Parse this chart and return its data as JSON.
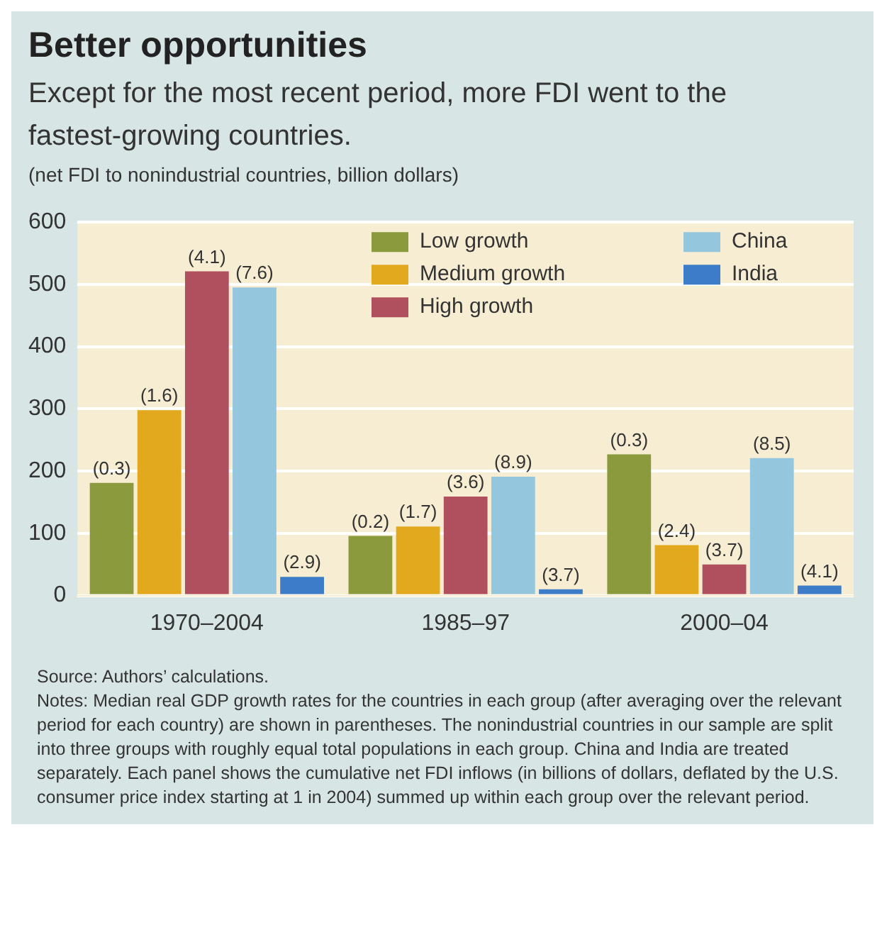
{
  "chart_data": {
    "type": "bar",
    "title": "Better opportunities",
    "subtitle": "Except for the most recent period, more FDI went to the fastest-growing countries.",
    "ylabel": "(net FDI to nonindustrial countries, billion dollars)",
    "categories": [
      "1970–2004",
      "1985–97",
      "2000–04"
    ],
    "series": [
      {
        "name": "Low growth",
        "color": "#8a9a3c",
        "values": [
          181,
          96,
          227
        ]
      },
      {
        "name": "Medium growth",
        "color": "#e2a81e",
        "values": [
          298,
          111,
          81
        ]
      },
      {
        "name": "High growth",
        "color": "#b0505e",
        "values": [
          521,
          159,
          50
        ]
      },
      {
        "name": "China",
        "color": "#94c6de",
        "values": [
          495,
          191,
          221
        ]
      },
      {
        "name": "India",
        "color": "#3d7cc9",
        "values": [
          30,
          10,
          16
        ]
      }
    ],
    "ylim": [
      0,
      600
    ],
    "yticks": [
      0,
      100,
      200,
      300,
      400,
      500,
      600
    ],
    "grid": "y",
    "legend": "top right",
    "annotations": [
      "(0.3)",
      "(1.6)",
      "(4.1)",
      "(7.6)",
      "(2.9)",
      "(0.2)",
      "(1.7)",
      "(3.6)",
      "(8.9)",
      "(3.7)",
      "(0.3)",
      "(2.4)",
      "(3.7)",
      "(8.5)",
      "(4.1)",
      "Source: Authors’ calculations.",
      "Notes: Median real GDP growth rates for the countries in each group (after averaging over the relevant period for each country) are shown in parentheses. The nonindustrial countries in our sample are split into three groups with roughly equal total populations in each group. China and India are treated separately. Each panel shows the cumulative net FDI inflows (in billions of dollars, deflated by the U.S. consumer price index starting at 1 in 2004) summed up within each group over the relevant period."
    ]
  }
}
